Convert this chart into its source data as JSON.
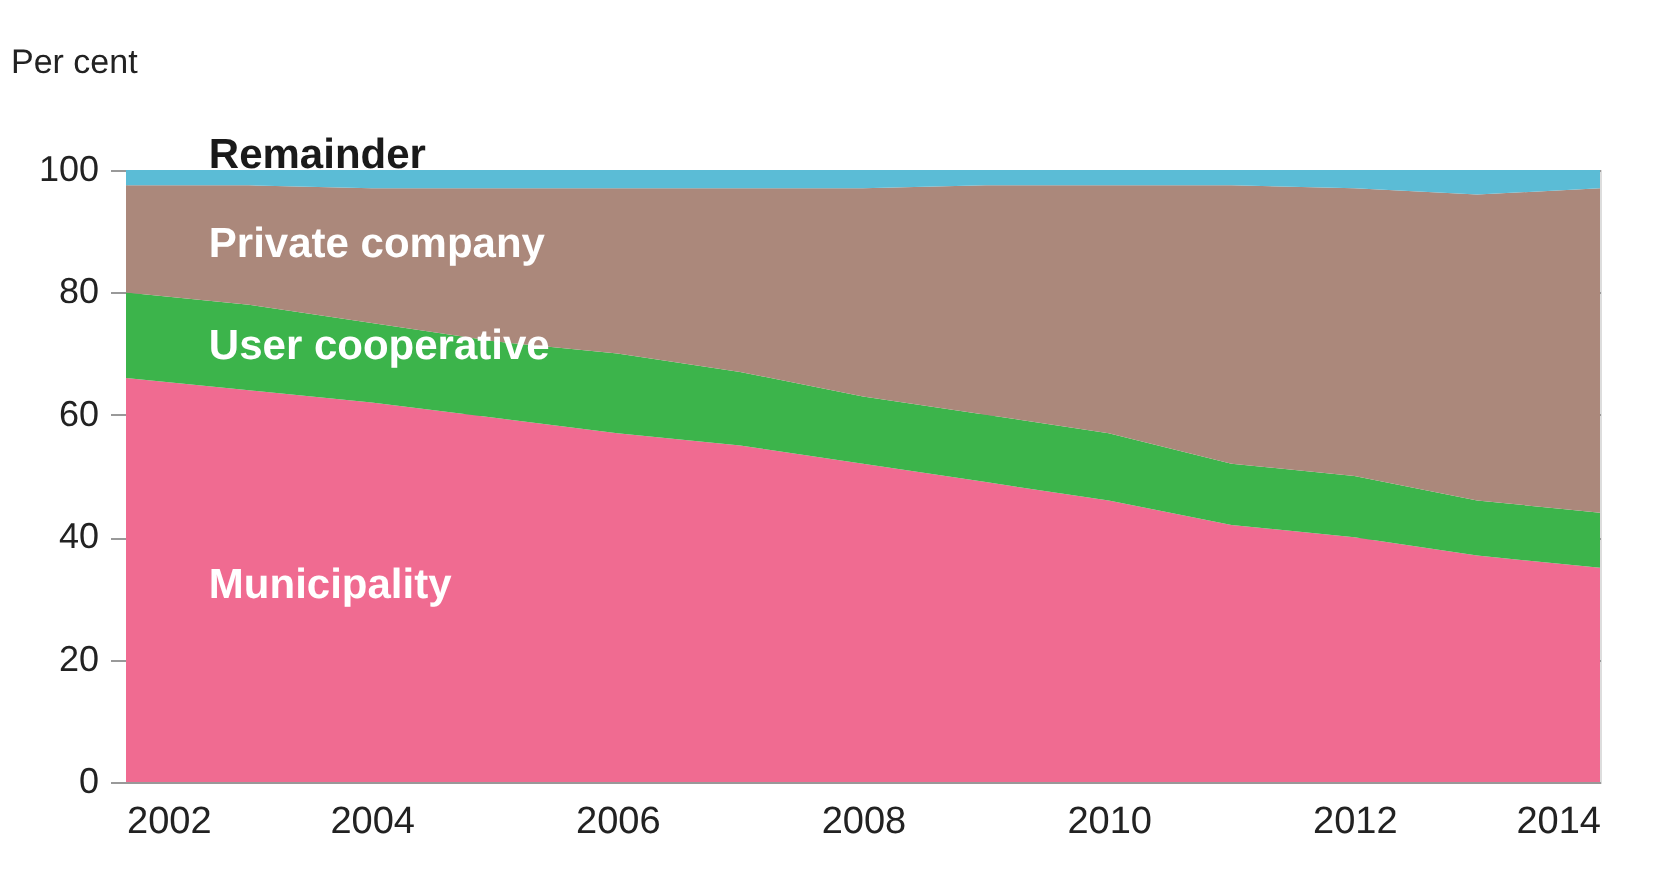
{
  "chart_data": {
    "type": "area",
    "stacked": true,
    "ylabel": "Per cent",
    "x": [
      2002,
      2003,
      2004,
      2005,
      2006,
      2007,
      2008,
      2009,
      2010,
      2011,
      2012,
      2013,
      2014
    ],
    "series": [
      {
        "name": "Municipality",
        "color": "#f06b91",
        "values": [
          66,
          64,
          62,
          59.5,
          57,
          55,
          52,
          49,
          46,
          42,
          40,
          37,
          35
        ]
      },
      {
        "name": "User cooperative",
        "color": "#3cb44b",
        "values": [
          14,
          14,
          13,
          12.5,
          13,
          12,
          11,
          11,
          11,
          10,
          10,
          9,
          9
        ]
      },
      {
        "name": "Private company",
        "color": "#ab887b",
        "values": [
          17.5,
          19.5,
          22,
          25,
          27,
          30,
          34,
          37.5,
          40.5,
          45.5,
          47,
          50,
          53
        ]
      },
      {
        "name": "Remainder",
        "color": "#5bbcd6",
        "values": [
          2.5,
          2.5,
          3,
          3,
          3,
          3,
          3,
          2.5,
          2.5,
          2.5,
          3,
          4,
          3
        ]
      }
    ],
    "xlim": [
      2002,
      2014
    ],
    "xticks": [
      2002,
      2004,
      2006,
      2008,
      2010,
      2012,
      2014
    ],
    "ylim": [
      0,
      100
    ],
    "yticks": [
      0,
      20,
      40,
      60,
      80,
      100
    ],
    "grid": "y"
  }
}
